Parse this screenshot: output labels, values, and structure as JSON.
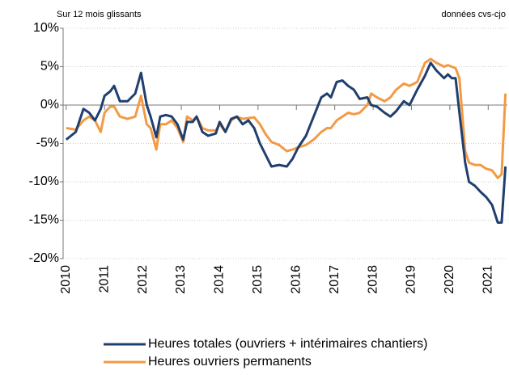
{
  "chart_data": {
    "type": "line",
    "subtitle": "Sur 12 mois glissants",
    "note": "données cvs-cjo",
    "x": [
      2010.0,
      2010.25,
      2010.45,
      2010.6,
      2010.75,
      2010.9,
      2011.0,
      2011.15,
      2011.25,
      2011.4,
      2011.6,
      2011.8,
      2011.95,
      2012.1,
      2012.2,
      2012.35,
      2012.45,
      2012.6,
      2012.75,
      2012.9,
      2013.05,
      2013.15,
      2013.3,
      2013.4,
      2013.55,
      2013.7,
      2013.9,
      2014.0,
      2014.15,
      2014.3,
      2014.45,
      2014.6,
      2014.75,
      2014.9,
      2015.05,
      2015.2,
      2015.35,
      2015.55,
      2015.75,
      2015.9,
      2016.05,
      2016.25,
      2016.45,
      2016.65,
      2016.8,
      2016.9,
      2017.05,
      2017.2,
      2017.35,
      2017.5,
      2017.65,
      2017.85,
      2017.95,
      2018.1,
      2018.3,
      2018.45,
      2018.6,
      2018.8,
      2018.95,
      2019.15,
      2019.35,
      2019.5,
      2019.65,
      2019.85,
      2019.95,
      2020.05,
      2020.15,
      2020.25,
      2020.4,
      2020.5,
      2020.65,
      2020.8,
      2020.95,
      2021.1,
      2021.25,
      2021.35,
      2021.45
    ],
    "series": [
      {
        "name": "Heures totales (ouvriers + intérimaires chantiers)",
        "color": "#1f3f6e",
        "values": [
          -4.5,
          -3.5,
          -0.5,
          -1,
          -2,
          -0.5,
          1.2,
          1.8,
          2.5,
          0.5,
          0.5,
          1.5,
          4.2,
          0,
          -1.5,
          -4.2,
          -1.5,
          -1.3,
          -1.5,
          -2.5,
          -4.5,
          -2.2,
          -2.2,
          -1.5,
          -3.5,
          -4,
          -3.7,
          -2.2,
          -3.5,
          -1.8,
          -1.5,
          -2.5,
          -2,
          -3,
          -5,
          -6.5,
          -8,
          -7.8,
          -8,
          -7,
          -5.5,
          -4,
          -1.5,
          1,
          1.5,
          1,
          3,
          3.2,
          2.5,
          2,
          0.8,
          1,
          0,
          -0.2,
          -1,
          -1.5,
          -0.8,
          0.5,
          0,
          2,
          3.8,
          5.5,
          4.5,
          3.5,
          4,
          3.5,
          3.5,
          -1,
          -7.5,
          -10,
          -10.5,
          -11.3,
          -12,
          -13,
          -15.3,
          -15.3,
          -8
        ]
      },
      {
        "name": "Heures ouvriers permanents",
        "color": "#f39a45",
        "values": [
          -3,
          -3.2,
          -2,
          -1.5,
          -2,
          -3.5,
          -1,
          -0.2,
          -0.2,
          -1.5,
          -1.8,
          -1.5,
          1.2,
          -2.5,
          -3,
          -5.8,
          -2.5,
          -2.5,
          -2,
          -3,
          -4.8,
          -1.5,
          -2,
          -1.5,
          -3,
          -3.3,
          -3.3,
          -2.5,
          -3.5,
          -2,
          -1.5,
          -1.8,
          -1.7,
          -1.6,
          -2.5,
          -3.8,
          -4.8,
          -5.2,
          -6,
          -5.8,
          -5.5,
          -5.2,
          -4.5,
          -3.5,
          -3,
          -3,
          -2,
          -1.5,
          -1,
          -1.2,
          -1,
          0,
          1.5,
          1,
          0.5,
          1,
          2,
          2.8,
          2.5,
          3,
          5.5,
          6,
          5.5,
          5,
          5.2,
          5,
          4.8,
          3.5,
          -6,
          -7.5,
          -7.8,
          -7.8,
          -8.3,
          -8.5,
          -9.5,
          -9,
          1.5
        ]
      }
    ],
    "xlim": [
      2009.92,
      2021.5
    ],
    "xticks": [
      2010,
      2011,
      2012,
      2013,
      2014,
      2015,
      2016,
      2017,
      2018,
      2019,
      2020,
      2021
    ],
    "ylim": [
      -20,
      10
    ],
    "yticks": [
      {
        "value": -20,
        "label": "-20%"
      },
      {
        "value": -15,
        "label": "-15%"
      },
      {
        "value": -10,
        "label": "-10%"
      },
      {
        "value": -5,
        "label": "-5%"
      },
      {
        "value": 0,
        "label": "0%"
      },
      {
        "value": 5,
        "label": "5%"
      },
      {
        "value": 10,
        "label": "10%"
      }
    ],
    "grid": true
  }
}
